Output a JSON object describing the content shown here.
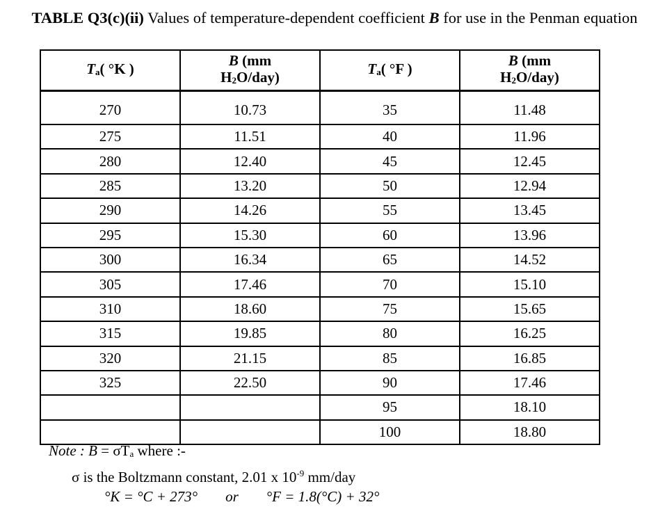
{
  "title": {
    "label": "TABLE Q3(c)(ii)",
    "text_before": " Values of temperature-dependent coefficient ",
    "symbol": "B",
    "text_after": " for use in the Penman equation"
  },
  "table": {
    "headers": [
      {
        "main": "T",
        "sub": "a",
        "rest": "( °K )"
      },
      {
        "line1_sym": "B",
        "line1_rest": " (mm",
        "line2_a": "H",
        "line2_sub": "2",
        "line2_b": "O/day)"
      },
      {
        "main": "T",
        "sub": "a",
        "rest": "( °F )"
      },
      {
        "line1_sym": "B",
        "line1_rest": " (mm",
        "line2_a": "H",
        "line2_sub": "2",
        "line2_b": "O/day)"
      }
    ],
    "rows": [
      [
        "270",
        "10.73",
        "35",
        "11.48"
      ],
      [
        "275",
        "11.51",
        "40",
        "11.96"
      ],
      [
        "280",
        "12.40",
        "45",
        "12.45"
      ],
      [
        "285",
        "13.20",
        "50",
        "12.94"
      ],
      [
        "290",
        "14.26",
        "55",
        "13.45"
      ],
      [
        "295",
        "15.30",
        "60",
        "13.96"
      ],
      [
        "300",
        "16.34",
        "65",
        "14.52"
      ],
      [
        "305",
        "17.46",
        "70",
        "15.10"
      ],
      [
        "310",
        "18.60",
        "75",
        "15.65"
      ],
      [
        "315",
        "19.85",
        "80",
        "16.25"
      ],
      [
        "320",
        "21.15",
        "85",
        "16.85"
      ],
      [
        "325",
        "22.50",
        "90",
        "17.46"
      ],
      [
        "",
        "",
        "95",
        "18.10"
      ],
      [
        "",
        "",
        "100",
        "18.80"
      ]
    ]
  },
  "note": {
    "line1_note": "Note : B",
    "line1_eq": " = σT",
    "line1_sub": "a",
    "line1_rest": "  where :-",
    "line2": "σ is the Boltzmann constant, 2.01 x 10",
    "line2_sup": "-9",
    "line2_rest": " mm/day",
    "line3_a": "°K =  °C + 273°",
    "line3_or": "or",
    "line3_b": "°F = 1.8(°C) + 32°"
  }
}
